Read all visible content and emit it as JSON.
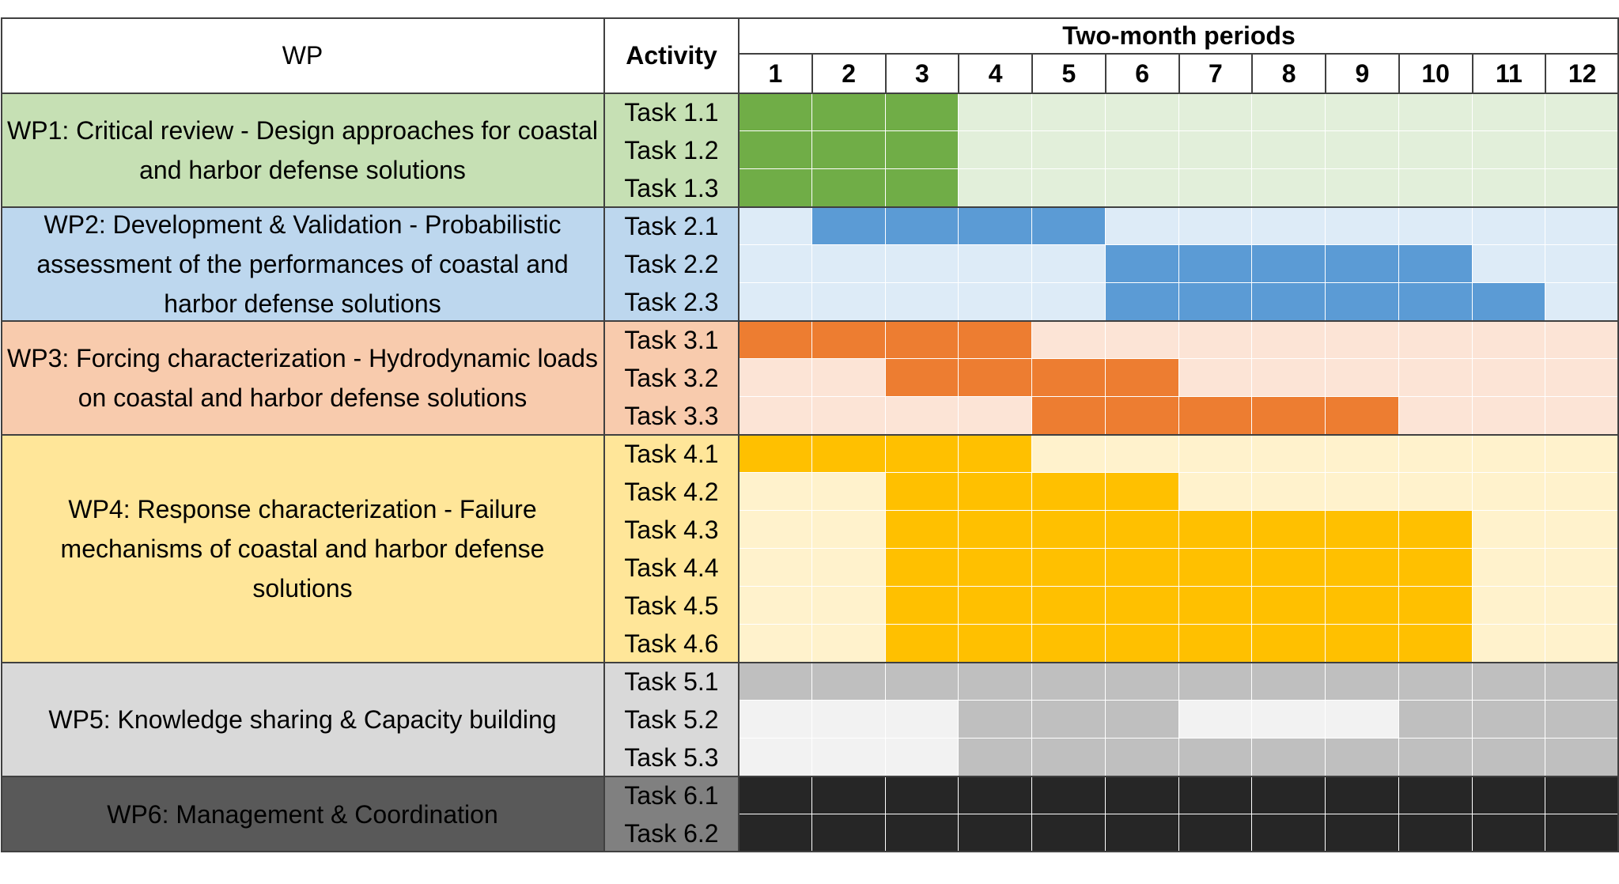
{
  "header": {
    "wp_label": "WP",
    "activity_label": "Activity",
    "periods_label": "Two-month periods",
    "periods": [
      "1",
      "2",
      "3",
      "4",
      "5",
      "6",
      "7",
      "8",
      "9",
      "10",
      "11",
      "12"
    ]
  },
  "work_packages": [
    {
      "title": "WP1: Critical review - Design approaches for coastal and harbor defense solutions",
      "colors": {
        "label_bg": "#c6e0b4",
        "light": "#e2efda",
        "dark": "#70ad47",
        "task_bg": "#c6e0b4"
      },
      "tasks": [
        {
          "name": "Task 1.1",
          "active_periods": [
            1,
            2,
            3
          ]
        },
        {
          "name": "Task 1.2",
          "active_periods": [
            1,
            2,
            3
          ]
        },
        {
          "name": "Task 1.3",
          "active_periods": [
            1,
            2,
            3
          ]
        }
      ]
    },
    {
      "title": "WP2: Development & Validation - Probabilistic assessment of the performances of coastal and harbor defense solutions",
      "colors": {
        "label_bg": "#bdd7ee",
        "light": "#ddebf7",
        "dark": "#5b9bd5",
        "task_bg": "#bdd7ee"
      },
      "tasks": [
        {
          "name": "Task 2.1",
          "active_periods": [
            2,
            3,
            4,
            5
          ]
        },
        {
          "name": "Task 2.2",
          "active_periods": [
            6,
            7,
            8,
            9,
            10
          ]
        },
        {
          "name": "Task 2.3",
          "active_periods": [
            6,
            7,
            8,
            9,
            10,
            11
          ]
        }
      ]
    },
    {
      "title": "WP3: Forcing characterization - Hydrodynamic loads on coastal and harbor defense solutions",
      "colors": {
        "label_bg": "#f8cbad",
        "light": "#fce4d6",
        "dark": "#ed7d31",
        "task_bg": "#f8cbad"
      },
      "tasks": [
        {
          "name": "Task 3.1",
          "active_periods": [
            1,
            2,
            3,
            4
          ]
        },
        {
          "name": "Task 3.2",
          "active_periods": [
            3,
            4,
            5,
            6
          ]
        },
        {
          "name": "Task 3.3",
          "active_periods": [
            5,
            6,
            7,
            8,
            9
          ]
        }
      ]
    },
    {
      "title": "WP4: Response characterization - Failure mechanisms of coastal and harbor defense solutions",
      "colors": {
        "label_bg": "#ffe699",
        "light": "#fff2cc",
        "dark": "#ffc000",
        "task_bg": "#ffe699"
      },
      "tasks": [
        {
          "name": "Task 4.1",
          "active_periods": [
            1,
            2,
            3,
            4
          ]
        },
        {
          "name": "Task 4.2",
          "active_periods": [
            3,
            4,
            5,
            6
          ]
        },
        {
          "name": "Task 4.3",
          "active_periods": [
            3,
            4,
            5,
            6,
            7,
            8,
            9,
            10
          ]
        },
        {
          "name": "Task 4.4",
          "active_periods": [
            3,
            4,
            5,
            6,
            7,
            8,
            9,
            10
          ]
        },
        {
          "name": "Task 4.5",
          "active_periods": [
            3,
            4,
            5,
            6,
            7,
            8,
            9,
            10
          ]
        },
        {
          "name": "Task 4.6",
          "active_periods": [
            3,
            4,
            5,
            6,
            7,
            8,
            9,
            10
          ]
        }
      ]
    },
    {
      "title": "WP5: Knowledge sharing & Capacity building",
      "colors": {
        "label_bg": "#d9d9d9",
        "light": "#f2f2f2",
        "dark": "#bfbfbf",
        "task_bg": "#d9d9d9"
      },
      "tasks": [
        {
          "name": "Task 5.1",
          "active_periods": [
            1,
            2,
            3,
            4,
            5,
            6,
            7,
            8,
            9,
            10,
            11,
            12
          ]
        },
        {
          "name": "Task 5.2",
          "active_periods": [
            4,
            5,
            6,
            10,
            11,
            12
          ]
        },
        {
          "name": "Task 5.3",
          "active_periods": [
            4,
            5,
            6,
            7,
            8,
            9,
            10,
            11,
            12
          ]
        }
      ]
    },
    {
      "title": "WP6: Management & Coordination",
      "colors": {
        "label_bg": "#595959",
        "light": "#262626",
        "dark": "#262626",
        "task_bg": "#808080"
      },
      "tasks": [
        {
          "name": "Task 6.1",
          "active_periods": [
            1,
            2,
            3,
            4,
            5,
            6,
            7,
            8,
            9,
            10,
            11,
            12
          ]
        },
        {
          "name": "Task 6.2",
          "active_periods": [
            1,
            2,
            3,
            4,
            5,
            6,
            7,
            8,
            9,
            10,
            11,
            12
          ]
        }
      ]
    }
  ]
}
